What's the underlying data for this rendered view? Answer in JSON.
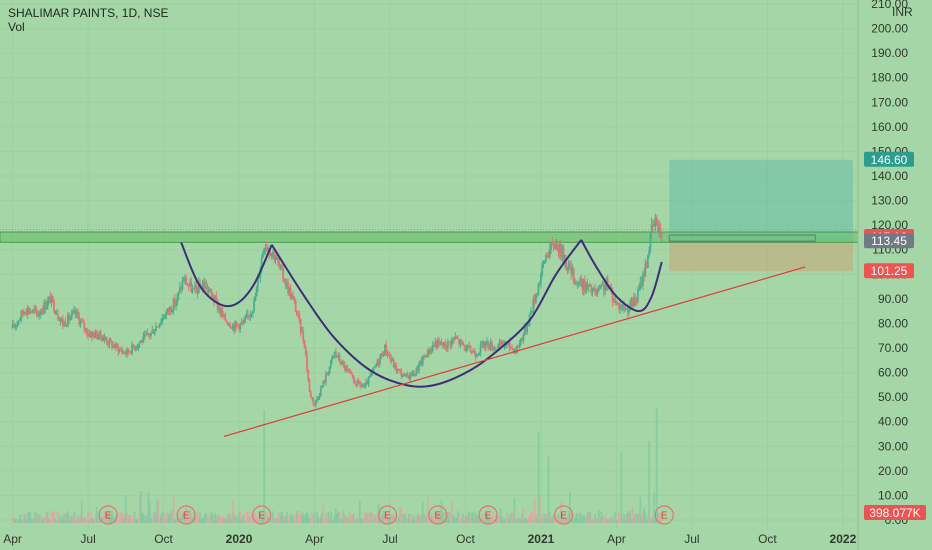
{
  "header": {
    "symbol_title": "SHALIMAR PAINTS, 1D, NSE",
    "volume_label": "Vol",
    "currency": "INR"
  },
  "colors": {
    "background": "#a5d6a7",
    "up_candle": "#4caf8a",
    "down_candle": "#e57373",
    "cup_curve": "#3f2d7a",
    "trendline": "#e53935",
    "target_zone": "#4db6ac",
    "stop_zone": "#c7a57a",
    "resistance_band": "#66bb6a"
  },
  "chart_data": {
    "type": "candlestick",
    "title": "SHALIMAR PAINTS, 1D, NSE",
    "ylabel": "INR",
    "ylim": [
      0,
      210
    ],
    "y_ticks": [
      "0.00",
      "10.00",
      "20.00",
      "30.00",
      "40.00",
      "50.00",
      "60.00",
      "70.00",
      "80.00",
      "90.00",
      "100.00",
      "110.00",
      "120.00",
      "130.00",
      "140.00",
      "150.00",
      "160.00",
      "170.00",
      "180.00",
      "190.00",
      "200.00",
      "210.00"
    ],
    "x_ticks": [
      {
        "label": "Apr",
        "t": 0.0,
        "bold": false
      },
      {
        "label": "Jul",
        "t": 3.0,
        "bold": false
      },
      {
        "label": "Oct",
        "t": 6.0,
        "bold": false
      },
      {
        "label": "2020",
        "t": 9.0,
        "bold": true
      },
      {
        "label": "Apr",
        "t": 12.0,
        "bold": false
      },
      {
        "label": "Jul",
        "t": 15.0,
        "bold": false
      },
      {
        "label": "Oct",
        "t": 18.0,
        "bold": false
      },
      {
        "label": "2021",
        "t": 21.0,
        "bold": true
      },
      {
        "label": "Apr",
        "t": 24.0,
        "bold": false
      },
      {
        "label": "Jul",
        "t": 27.0,
        "bold": false
      },
      {
        "label": "Oct",
        "t": 30.0,
        "bold": false
      },
      {
        "label": "2022",
        "t": 33.0,
        "bold": true
      }
    ],
    "xlim": [
      -0.5,
      33.6
    ],
    "price_path": [
      [
        0.0,
        78
      ],
      [
        0.5,
        86
      ],
      [
        1.0,
        84
      ],
      [
        1.5,
        90
      ],
      [
        2.0,
        80
      ],
      [
        2.5,
        84
      ],
      [
        3.0,
        76
      ],
      [
        3.5,
        75
      ],
      [
        4.0,
        71
      ],
      [
        4.5,
        68
      ],
      [
        5.0,
        72
      ],
      [
        5.5,
        76
      ],
      [
        6.0,
        83
      ],
      [
        6.5,
        89
      ],
      [
        6.8,
        98
      ],
      [
        7.2,
        93
      ],
      [
        7.6,
        96
      ],
      [
        8.0,
        90
      ],
      [
        8.4,
        82
      ],
      [
        8.8,
        79
      ],
      [
        9.2,
        80
      ],
      [
        9.6,
        88
      ],
      [
        10.0,
        113
      ],
      [
        10.4,
        108
      ],
      [
        10.8,
        98
      ],
      [
        11.2,
        88
      ],
      [
        11.6,
        72
      ],
      [
        11.8,
        52
      ],
      [
        12.0,
        47
      ],
      [
        12.4,
        57
      ],
      [
        12.8,
        68
      ],
      [
        13.2,
        62
      ],
      [
        13.6,
        56
      ],
      [
        14.0,
        54
      ],
      [
        14.4,
        62
      ],
      [
        14.8,
        70
      ],
      [
        15.2,
        62
      ],
      [
        15.6,
        58
      ],
      [
        16.0,
        60
      ],
      [
        16.4,
        67
      ],
      [
        16.8,
        72
      ],
      [
        17.2,
        71
      ],
      [
        17.6,
        74
      ],
      [
        18.0,
        70
      ],
      [
        18.4,
        68
      ],
      [
        18.8,
        72
      ],
      [
        19.2,
        70
      ],
      [
        19.6,
        72
      ],
      [
        20.0,
        69
      ],
      [
        20.4,
        78
      ],
      [
        20.8,
        92
      ],
      [
        21.2,
        108
      ],
      [
        21.6,
        113
      ],
      [
        22.0,
        105
      ],
      [
        22.4,
        97
      ],
      [
        22.8,
        95
      ],
      [
        23.2,
        92
      ],
      [
        23.6,
        96
      ],
      [
        24.0,
        88
      ],
      [
        24.4,
        86
      ],
      [
        24.8,
        90
      ],
      [
        25.2,
        105
      ],
      [
        25.4,
        118
      ],
      [
        25.6,
        122
      ],
      [
        25.8,
        115.16
      ]
    ],
    "cup_curves": [
      {
        "points": [
          [
            6.7,
            113
          ],
          [
            7.4,
            96
          ],
          [
            8.2,
            88
          ],
          [
            8.9,
            88
          ],
          [
            9.6,
            96
          ],
          [
            10.3,
            112
          ]
        ]
      },
      {
        "points": [
          [
            10.3,
            112
          ],
          [
            11.6,
            91
          ],
          [
            12.8,
            74
          ],
          [
            14.2,
            61
          ],
          [
            15.6,
            55
          ],
          [
            16.8,
            55
          ],
          [
            18.2,
            61
          ],
          [
            19.4,
            70
          ],
          [
            20.6,
            82
          ],
          [
            21.6,
            100
          ],
          [
            22.6,
            114
          ]
        ]
      },
      {
        "points": [
          [
            22.6,
            114
          ],
          [
            23.2,
            103
          ],
          [
            24.0,
            91
          ],
          [
            24.9,
            85
          ],
          [
            25.4,
            91
          ],
          [
            25.8,
            105
          ]
        ]
      }
    ],
    "trendline": {
      "points": [
        [
          8.4,
          34
        ],
        [
          31.5,
          103
        ]
      ]
    },
    "resistance_band": {
      "y_low": 113.0,
      "y_high": 117.2,
      "dotted_y": 118.2
    },
    "long_position": {
      "t_start": 26.1,
      "t_end": 33.4,
      "entry": 113.45,
      "target": 146.6,
      "stop": 101.25,
      "box_line_end": 31.9
    },
    "price_tags": [
      {
        "value": 146.6,
        "label": "146.60",
        "color": "#2a9d8f"
      },
      {
        "value": 115.16,
        "label": "115.16",
        "color": "#ef5350"
      },
      {
        "value": 113.45,
        "label": "113.45",
        "color": "#707a86"
      },
      {
        "value": 101.25,
        "label": "101.25",
        "color": "#ef5350"
      },
      {
        "value": 1.5,
        "label": "398.077K",
        "color": "#ef5350"
      }
    ],
    "earnings_markers": [
      {
        "t": 3.8,
        "label": "E"
      },
      {
        "t": 6.9,
        "label": "E"
      },
      {
        "t": 9.9,
        "label": "E"
      },
      {
        "t": 14.9,
        "label": "E"
      },
      {
        "t": 16.9,
        "label": "E"
      },
      {
        "t": 18.9,
        "label": "E"
      },
      {
        "t": 21.9,
        "label": "E"
      },
      {
        "t": 25.9,
        "label": "E"
      }
    ],
    "volume_spikes": [
      [
        10.0,
        47
      ],
      [
        20.9,
        38
      ],
      [
        21.3,
        28
      ],
      [
        24.2,
        30
      ],
      [
        25.3,
        34
      ],
      [
        25.6,
        48
      ]
    ]
  }
}
